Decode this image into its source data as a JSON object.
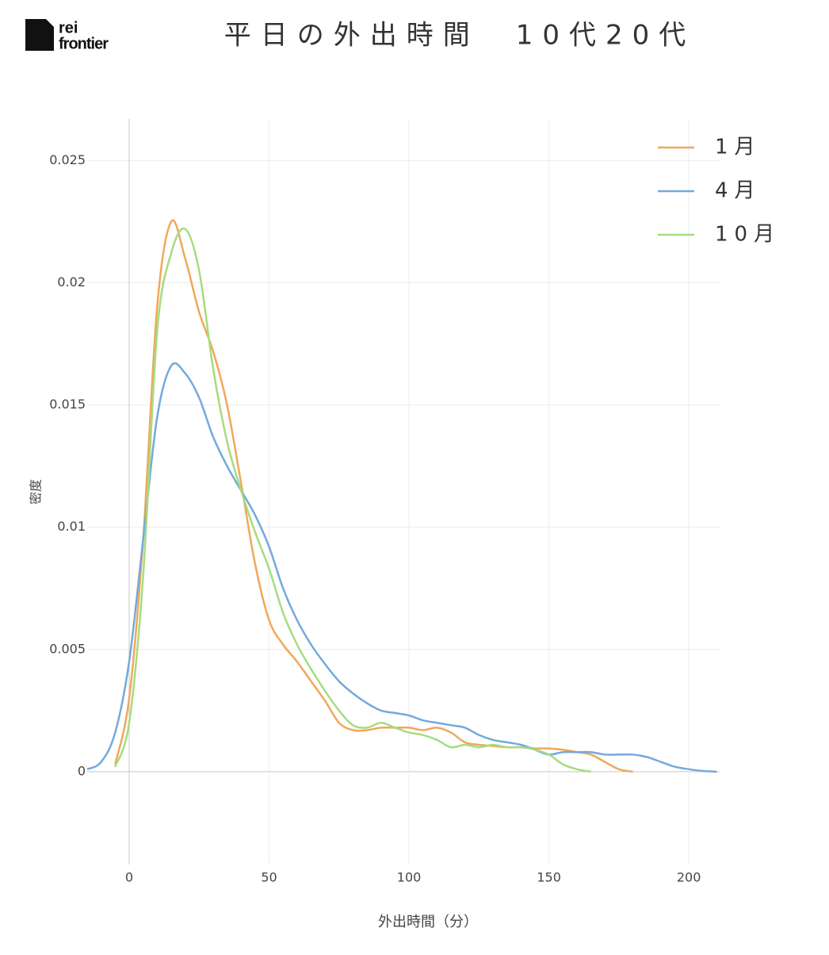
{
  "logo": {
    "line1": "rei",
    "line2": "frontier"
  },
  "chart_data": {
    "type": "line",
    "title": "平日の外出時間　10代20代",
    "x_label": "外出時間（分）",
    "y_label": "密度",
    "x": [
      -15,
      -10,
      -5,
      0,
      5,
      10,
      15,
      20,
      25,
      30,
      35,
      40,
      45,
      50,
      55,
      60,
      65,
      70,
      75,
      80,
      85,
      90,
      95,
      100,
      105,
      110,
      115,
      120,
      125,
      130,
      135,
      140,
      145,
      150,
      155,
      160,
      165,
      170,
      175,
      180,
      185,
      190,
      195,
      200,
      205,
      210
    ],
    "series": [
      {
        "name": "1月",
        "color": "#f0a85a",
        "values": [
          null,
          null,
          0.0003,
          0.003,
          0.0095,
          0.019,
          0.0225,
          0.021,
          0.0188,
          0.0172,
          0.015,
          0.0118,
          0.0085,
          0.0062,
          0.0052,
          0.0045,
          0.0037,
          0.0029,
          0.002,
          0.0017,
          0.0017,
          0.0018,
          0.0018,
          0.0018,
          0.0017,
          0.0018,
          0.0016,
          0.0012,
          0.0011,
          0.00105,
          0.001,
          0.001,
          0.00095,
          0.00095,
          0.0009,
          0.0008,
          0.0007,
          0.0004,
          0.0001,
          0,
          null,
          null,
          null,
          null,
          null,
          null
        ]
      },
      {
        "name": "4月",
        "color": "#74a9dd",
        "values": [
          0.0001,
          0.0004,
          0.0016,
          0.0045,
          0.0095,
          0.0145,
          0.0166,
          0.0163,
          0.0153,
          0.0137,
          0.0125,
          0.0115,
          0.0105,
          0.0092,
          0.0075,
          0.0062,
          0.0052,
          0.0044,
          0.0037,
          0.0032,
          0.0028,
          0.0025,
          0.0024,
          0.0023,
          0.0021,
          0.002,
          0.0019,
          0.0018,
          0.0015,
          0.0013,
          0.0012,
          0.0011,
          0.0009,
          0.0007,
          0.0008,
          0.0008,
          0.0008,
          0.0007,
          0.0007,
          0.0007,
          0.0006,
          0.0004,
          0.0002,
          0.0001,
          3e-05,
          0
        ]
      },
      {
        "name": "10月",
        "color": "#a6dc80",
        "values": [
          null,
          null,
          0.0002,
          0.002,
          0.008,
          0.018,
          0.0212,
          0.0222,
          0.0205,
          0.0165,
          0.0135,
          0.0115,
          0.0098,
          0.0083,
          0.0065,
          0.0052,
          0.0042,
          0.0033,
          0.0025,
          0.0019,
          0.0018,
          0.002,
          0.0018,
          0.0016,
          0.0015,
          0.0013,
          0.001,
          0.0011,
          0.001,
          0.0011,
          0.001,
          0.001,
          0.0009,
          0.0007,
          0.0003,
          0.0001,
          0,
          null,
          null,
          null,
          null,
          null,
          null,
          null,
          null,
          null
        ]
      }
    ],
    "xlim": [
      -15,
      211
    ],
    "ylim": [
      -0.0038,
      0.0267
    ],
    "xticks": [
      0,
      50,
      100,
      150,
      200
    ],
    "yticks": [
      0,
      0.005,
      0.01,
      0.015,
      0.02,
      0.025
    ],
    "grid": true,
    "legend": "top-right"
  }
}
